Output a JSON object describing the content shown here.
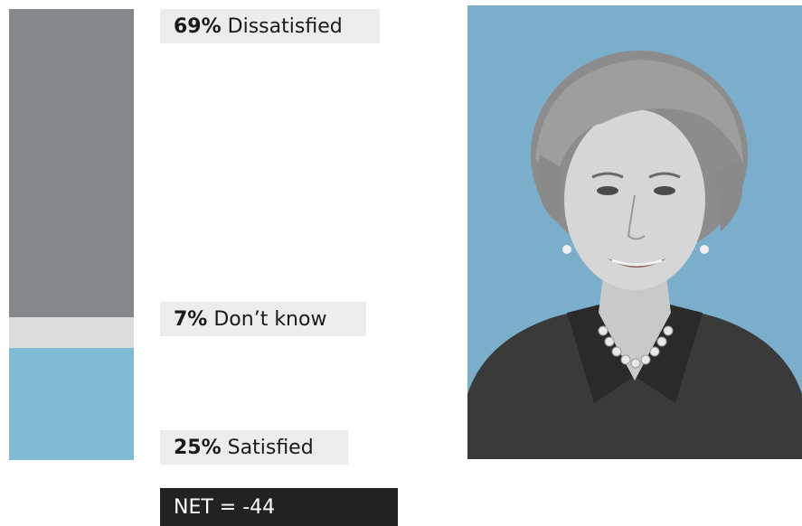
{
  "chart_data": {
    "type": "bar",
    "stacked": true,
    "categories": [
      "Dissatisfied",
      "Don’t know",
      "Satisfied"
    ],
    "values": [
      69,
      7,
      25
    ],
    "unit": "%",
    "colors": {
      "Dissatisfied": "#85888b",
      "Don’t know": "#dcdcdc",
      "Satisfied": "#7fbcd4"
    },
    "labels": [
      {
        "pct": "69%",
        "text": "Dissatisfied"
      },
      {
        "pct": "7%",
        "text": "Don’t know"
      },
      {
        "pct": "25%",
        "text": "Satisfied"
      }
    ],
    "net": "NET = -44"
  },
  "portrait": {
    "background_color": "#7aaecb",
    "description_icon": "person-portrait"
  }
}
